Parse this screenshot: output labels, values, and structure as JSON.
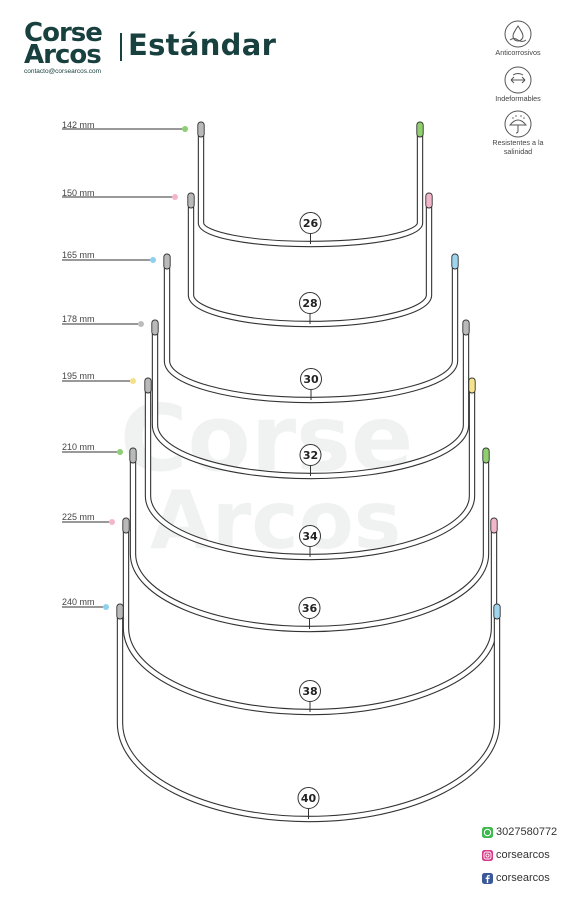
{
  "header": {
    "brand_line1": "Corse",
    "brand_line2": "Arcos",
    "email": "contacto@corsearcos.com",
    "title": "Estándar"
  },
  "features": [
    {
      "icon": "water-drop-icon",
      "label": "Anticorrosivos"
    },
    {
      "icon": "double-arrow-icon",
      "label": "Indeformables"
    },
    {
      "icon": "umbrella-icon",
      "label": "Resistentes a la salinidad"
    }
  ],
  "watermark": {
    "line1": "Corse",
    "line2": "Arcos"
  },
  "wires": [
    {
      "size": "26",
      "length": "142 mm",
      "dot_color": "#8ccf74",
      "left_tip": "#b9b9b9",
      "right_tip": "#8fcf6e"
    },
    {
      "size": "28",
      "length": "150 mm",
      "dot_color": "#f3b6c8",
      "left_tip": "#b9b9b9",
      "right_tip": "#f2b6cb"
    },
    {
      "size": "30",
      "length": "165 mm",
      "dot_color": "#8fd0ee",
      "left_tip": "#b9b9b9",
      "right_tip": "#9fd5ee"
    },
    {
      "size": "32",
      "length": "178 mm",
      "dot_color": "#bdbdbd",
      "left_tip": "#b9b9b9",
      "right_tip": "#b9b9b9"
    },
    {
      "size": "34",
      "length": "195 mm",
      "dot_color": "#f5e08a",
      "left_tip": "#b9b9b9",
      "right_tip": "#f5e38c"
    },
    {
      "size": "36",
      "length": "210 mm",
      "dot_color": "#8ccf74",
      "left_tip": "#b9b9b9",
      "right_tip": "#8fcf6e"
    },
    {
      "size": "38",
      "length": "225 mm",
      "dot_color": "#f3b6c8",
      "left_tip": "#b9b9b9",
      "right_tip": "#f2b6cb"
    },
    {
      "size": "40",
      "length": "240 mm",
      "dot_color": "#8fd0ee",
      "left_tip": "#b9b9b9",
      "right_tip": "#9fd5ee"
    }
  ],
  "contacts": {
    "whatsapp": "3027580772",
    "instagram": "corsearcos",
    "facebook": "corsearcos"
  }
}
